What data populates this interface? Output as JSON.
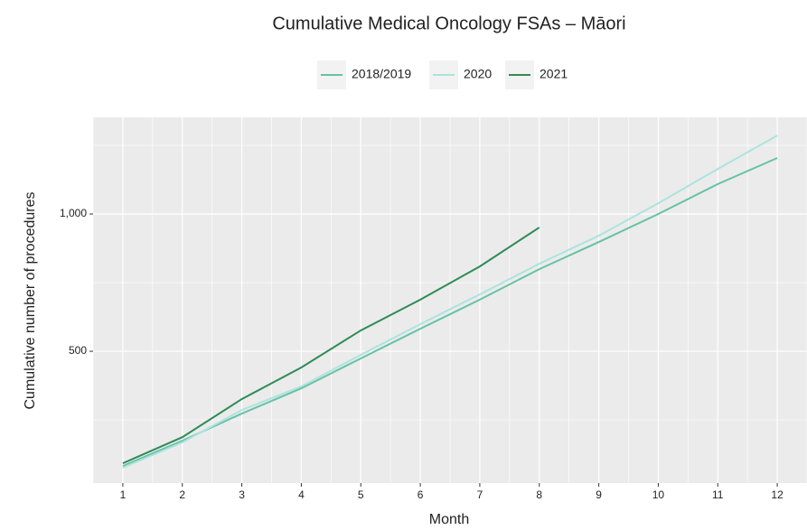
{
  "chart_data": {
    "type": "line",
    "title": "Cumulative Medical Oncology FSAs – Māori",
    "x_label": "Month",
    "y_label": "Cumulative number of procedures",
    "x": [
      1,
      2,
      3,
      4,
      5,
      6,
      7,
      8,
      9,
      10,
      11,
      12
    ],
    "series": [
      {
        "name": "2018/2019",
        "color": "#66c2a5",
        "values": [
          82,
          174,
          273,
          365,
          474,
          582,
          688,
          799,
          898,
          1000,
          1109,
          1204
        ]
      },
      {
        "name": "2020",
        "color": "#ade3df",
        "values": [
          76,
          168,
          286,
          372,
          487,
          599,
          707,
          819,
          921,
          1039,
          1164,
          1286
        ]
      },
      {
        "name": "2021",
        "color": "#2e8b57",
        "values": [
          92,
          187,
          326,
          441,
          576,
          688,
          809,
          951,
          null,
          null,
          null,
          null
        ]
      }
    ],
    "xlim": [
      0.5,
      12.5
    ],
    "ylim": [
      20,
      1352
    ],
    "xticks": [
      1,
      2,
      3,
      4,
      5,
      6,
      7,
      8,
      9,
      10,
      11,
      12
    ],
    "yticks": [
      500,
      {
        "value": 1000,
        "label": "1,000"
      }
    ],
    "grid": true,
    "legend": "top"
  }
}
